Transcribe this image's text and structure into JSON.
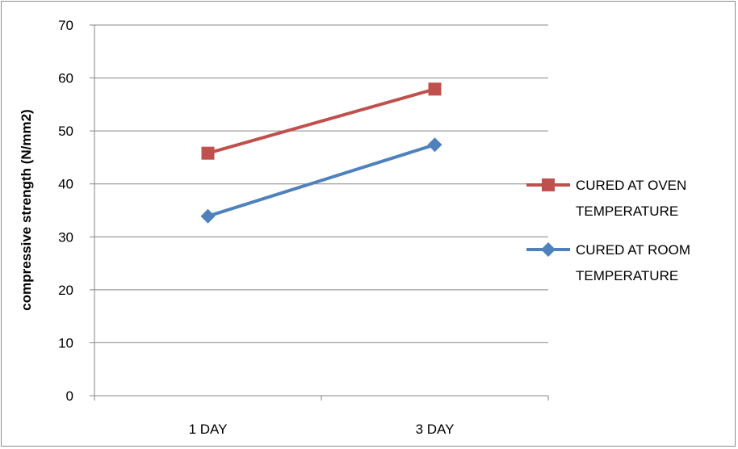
{
  "chart_data": {
    "type": "line",
    "title": "",
    "xlabel": "",
    "ylabel": "compressive strength (N/mm2)",
    "ylim": [
      0,
      70
    ],
    "yticks": [
      0,
      10,
      20,
      30,
      40,
      50,
      60,
      70
    ],
    "categories": [
      "1 DAY",
      "3 DAY"
    ],
    "grid": true,
    "legend_position": "right",
    "series": [
      {
        "name_lines": [
          "CURED  AT OVEN",
          "TEMPERATURE"
        ],
        "values": [
          45.8,
          57.9
        ],
        "color": "#c0504d",
        "marker": "square"
      },
      {
        "name_lines": [
          "CURED  AT ROOM",
          "TEMPERATURE"
        ],
        "values": [
          33.9,
          47.4
        ],
        "color": "#4f81bd",
        "marker": "diamond"
      }
    ]
  }
}
